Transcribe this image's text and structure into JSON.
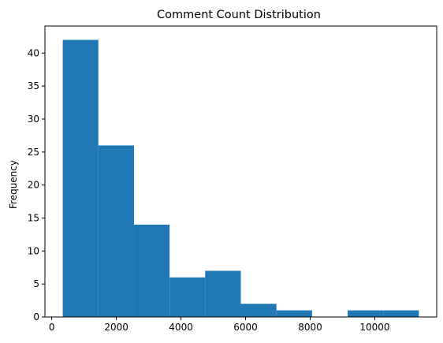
{
  "chart_data": {
    "type": "bar",
    "title": "Comment Count Distribution",
    "xlabel": "",
    "ylabel": "Frequency",
    "bins": [
      {
        "x0": 340,
        "x1": 1443,
        "count": 42
      },
      {
        "x0": 1443,
        "x1": 2545,
        "count": 26
      },
      {
        "x0": 2545,
        "x1": 3648,
        "count": 14
      },
      {
        "x0": 3648,
        "x1": 4750,
        "count": 6
      },
      {
        "x0": 4750,
        "x1": 5853,
        "count": 7
      },
      {
        "x0": 5853,
        "x1": 6955,
        "count": 2
      },
      {
        "x0": 6955,
        "x1": 8058,
        "count": 1
      },
      {
        "x0": 8058,
        "x1": 9160,
        "count": 0
      },
      {
        "x0": 9160,
        "x1": 10263,
        "count": 1
      },
      {
        "x0": 10263,
        "x1": 11365,
        "count": 1
      }
    ],
    "xlim": [
      -211,
      11916
    ],
    "ylim": [
      0,
      44.1
    ],
    "xticks": [
      0,
      2000,
      4000,
      6000,
      8000,
      10000
    ],
    "yticks": [
      0,
      5,
      10,
      15,
      20,
      25,
      30,
      35,
      40
    ],
    "bar_color": "#1f77b4",
    "grid": false,
    "legend": "none"
  }
}
